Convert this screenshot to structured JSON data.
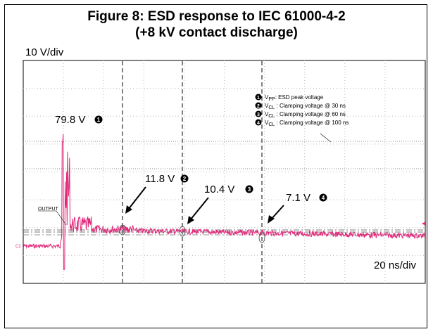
{
  "figure": {
    "title_line1": "Figure 8: ESD response to IEC 61000-4-2",
    "title_line2": "(+8 kV contact discharge)"
  },
  "scope": {
    "vertical_scale": "10 V/div",
    "horizontal_scale": "20 ns/div",
    "trace_label": "OUTPUT",
    "channel_marker": "C2",
    "trace_color": "#e0287a"
  },
  "legend": {
    "items": [
      {
        "marker": "1",
        "symbol": "V",
        "subscript": "PP",
        "text": ": ESD peak voltage"
      },
      {
        "marker": "2",
        "symbol": "V",
        "subscript": "CL",
        "text": " : Clamping voltage @ 30 ns"
      },
      {
        "marker": "3",
        "symbol": "V",
        "subscript": "CL",
        "text": " : Clamping voltage @ 60 ns"
      },
      {
        "marker": "4",
        "symbol": "V",
        "subscript": "CL",
        "text": " : Clamping voltage @ 100 ns"
      }
    ]
  },
  "chart_data": {
    "type": "line",
    "x_unit": "ns",
    "y_unit": "V",
    "annotations": [
      {
        "marker": "1",
        "label": "79.8 V",
        "t_ns": 0,
        "value": 79.8
      },
      {
        "marker": "2",
        "label": "11.8 V",
        "t_ns": 30,
        "value": 11.8
      },
      {
        "marker": "3",
        "label": "10.4 V",
        "t_ns": 60,
        "value": 10.4
      },
      {
        "marker": "4",
        "label": "7.1 V",
        "t_ns": 100,
        "value": 7.1
      }
    ]
  }
}
